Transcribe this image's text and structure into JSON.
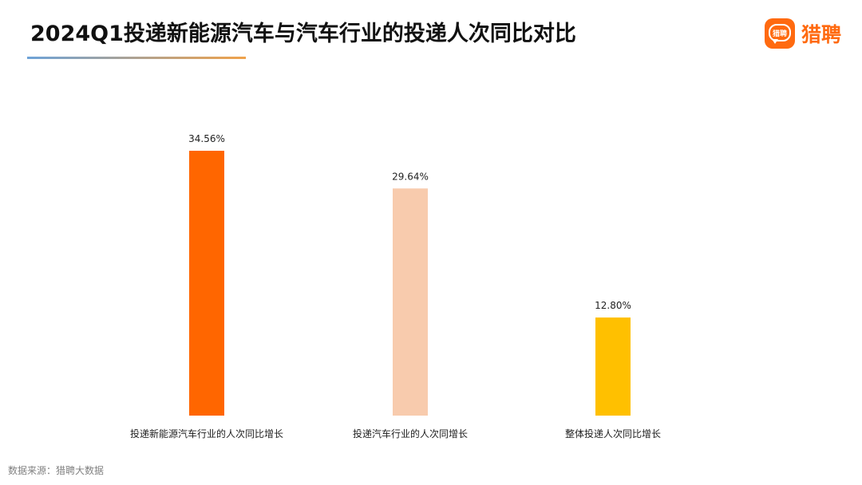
{
  "header": {
    "title": "2024Q1投递新能源汽车与汽车行业的投递人次同比对比",
    "logo_text": "猎聘",
    "logo_badge_text": "猎聘"
  },
  "footer": {
    "source": "数据来源：猎聘大数据"
  },
  "chart_data": {
    "type": "bar",
    "title": "2024Q1投递新能源汽车与汽车行业的投递人次同比对比",
    "xlabel": "",
    "ylabel": "",
    "categories": [
      "投递新能源汽车行业的人次同比增长",
      "投递汽车行业的人次同增长",
      "整体投递人次同比增长"
    ],
    "values": [
      34.56,
      29.64,
      12.8
    ],
    "data_labels": [
      "34.56%",
      "29.64%",
      "12.80%"
    ],
    "colors": [
      "#ff6600",
      "#f8cbad",
      "#ffc000"
    ],
    "ylim": [
      0,
      34.56
    ],
    "grid": false,
    "legend": "none"
  }
}
